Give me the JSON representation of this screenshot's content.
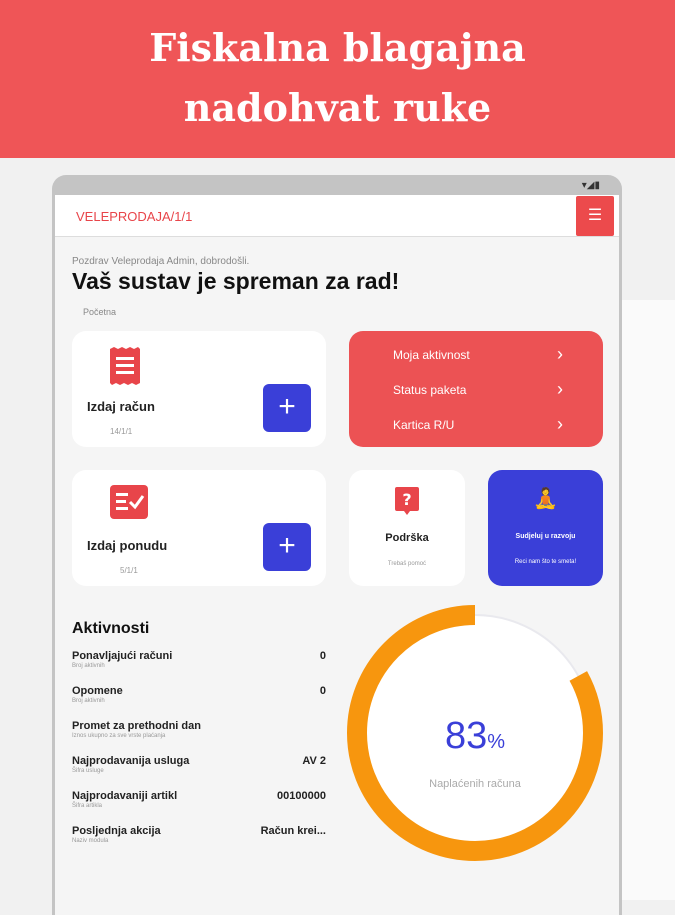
{
  "banner": {
    "line1": "Fiskalna blagajna",
    "line2": "nadohvat ruke"
  },
  "appbar": {
    "title": "VELEPRODAJA/1/1",
    "menu_icon": "menu-collapse-icon"
  },
  "greeting": "Pozdrav Veleprodaja Admin, dobrodošli.",
  "headline": "Vaš sustav je spreman za rad!",
  "breadcrumb": "Početna",
  "cards": {
    "invoice": {
      "title": "Izdaj račun",
      "sub": "14/1/1"
    },
    "offer": {
      "title": "Izdaj ponudu",
      "sub": "5/1/1"
    },
    "support": {
      "title": "Podrška",
      "sub": "Trebaš pomoć"
    },
    "develop": {
      "title": "Sudjeluj u razvoju",
      "sub": "Reci nam što te smeta!"
    }
  },
  "menu": [
    {
      "label": "Moja aktivnost"
    },
    {
      "label": "Status paketa"
    },
    {
      "label": "Kartica R/U"
    }
  ],
  "activities": {
    "title": "Aktivnosti",
    "rows": [
      {
        "label": "Ponavljajući računi",
        "sub": "Broj aktivnih",
        "value": "0"
      },
      {
        "label": "Opomene",
        "sub": "Broj aktivnih",
        "value": "0"
      },
      {
        "label": "Promet za prethodni dan",
        "sub": "Iznos ukupno za sve vrste plaćanja",
        "value": ""
      },
      {
        "label": "Najprodavanija usluga",
        "sub": "Šifra usluge",
        "value": "AV 2"
      },
      {
        "label": "Najprodavaniji artikl",
        "sub": "Šifra artikla",
        "value": "00100000"
      },
      {
        "label": "Posljednja akcija",
        "sub": "Naziv modula",
        "value": "Račun krei..."
      }
    ]
  },
  "gauge": {
    "value": "83",
    "unit": "%",
    "percent": 83,
    "label": "Naplaćenih računa",
    "color": "#f7960e"
  },
  "colors": {
    "accent": "#ec5254",
    "primary": "#3a3fd8"
  }
}
